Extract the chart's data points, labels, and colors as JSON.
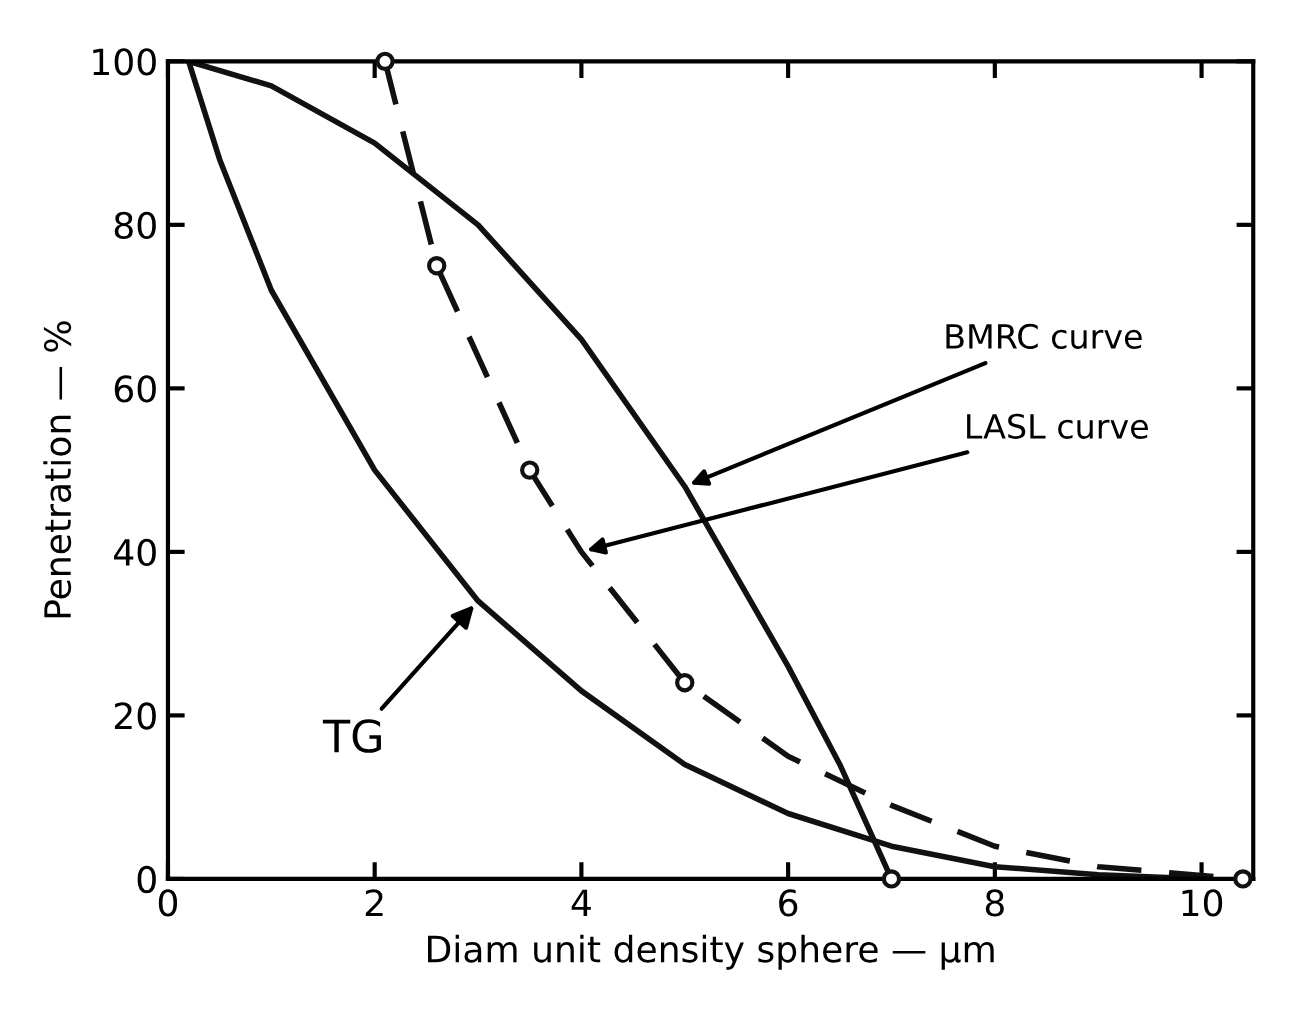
{
  "chart_data": {
    "type": "line",
    "xlabel": "Diam unit density sphere — μm",
    "ylabel": "Penetration — %",
    "xlim": [
      0,
      10.5
    ],
    "ylim": [
      0,
      100
    ],
    "xticks": [
      0,
      2,
      4,
      6,
      8,
      10
    ],
    "yticks": [
      0,
      20,
      40,
      60,
      80,
      100
    ],
    "grid": false,
    "legend": false,
    "series": [
      {
        "color": "#111111",
        "line_style": "solid",
        "marker": "none",
        "x": [
          0.2,
          1,
          2,
          3,
          4,
          5,
          6,
          6.5,
          7
        ],
        "values": [
          100,
          97,
          90,
          80,
          66,
          48,
          26,
          14,
          0
        ]
      },
      {
        "color": "#111111",
        "line_style": "dashed",
        "marker": "none",
        "x": [
          2.1,
          2.6,
          3.5,
          4,
          5,
          6,
          7,
          8,
          9,
          10.4
        ],
        "values": [
          100,
          75,
          50,
          40,
          24,
          15,
          9,
          4,
          1.5,
          0
        ]
      },
      {
        "type": "scatter",
        "color": "#111111",
        "marker": "circle",
        "x": [
          2.1,
          2.6,
          3.5,
          5,
          7,
          10.4
        ],
        "values": [
          100,
          75,
          50,
          24,
          0,
          0
        ]
      },
      {
        "color": "#111111",
        "line_style": "solid",
        "marker": "none",
        "x": [
          0.2,
          0.5,
          1,
          2,
          3,
          4,
          5,
          6,
          7,
          8,
          9,
          10
        ],
        "values": [
          100,
          88,
          72,
          50,
          34,
          23,
          14,
          8,
          4,
          1.5,
          0.5,
          0
        ]
      }
    ],
    "annotations": [
      {
        "text": "BMRC curve",
        "x": 5,
        "y": 48
      },
      {
        "text": "LASL curve",
        "x": 4.0,
        "y": 40
      },
      {
        "text": "TG",
        "x": 3.0,
        "y": 34
      }
    ]
  }
}
